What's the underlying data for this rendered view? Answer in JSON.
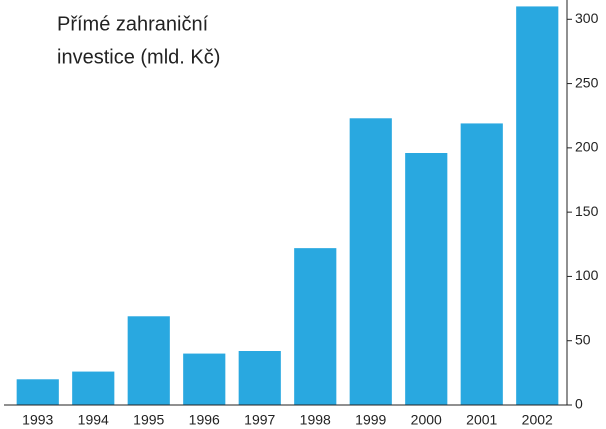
{
  "chart_data": {
    "type": "bar",
    "title": [
      "Přímé zahraniční",
      "investice (mld. Kč)"
    ],
    "categories": [
      "1993",
      "1994",
      "1995",
      "1996",
      "1997",
      "1998",
      "1999",
      "2000",
      "2001",
      "2002"
    ],
    "values": [
      20,
      26,
      69,
      40,
      42,
      122,
      223,
      196,
      219,
      310
    ],
    "color": "#29a8e0",
    "ylim": [
      0,
      315
    ],
    "yticks": [
      0,
      50,
      100,
      150,
      200,
      250,
      300
    ],
    "y_axis_side": "right"
  }
}
